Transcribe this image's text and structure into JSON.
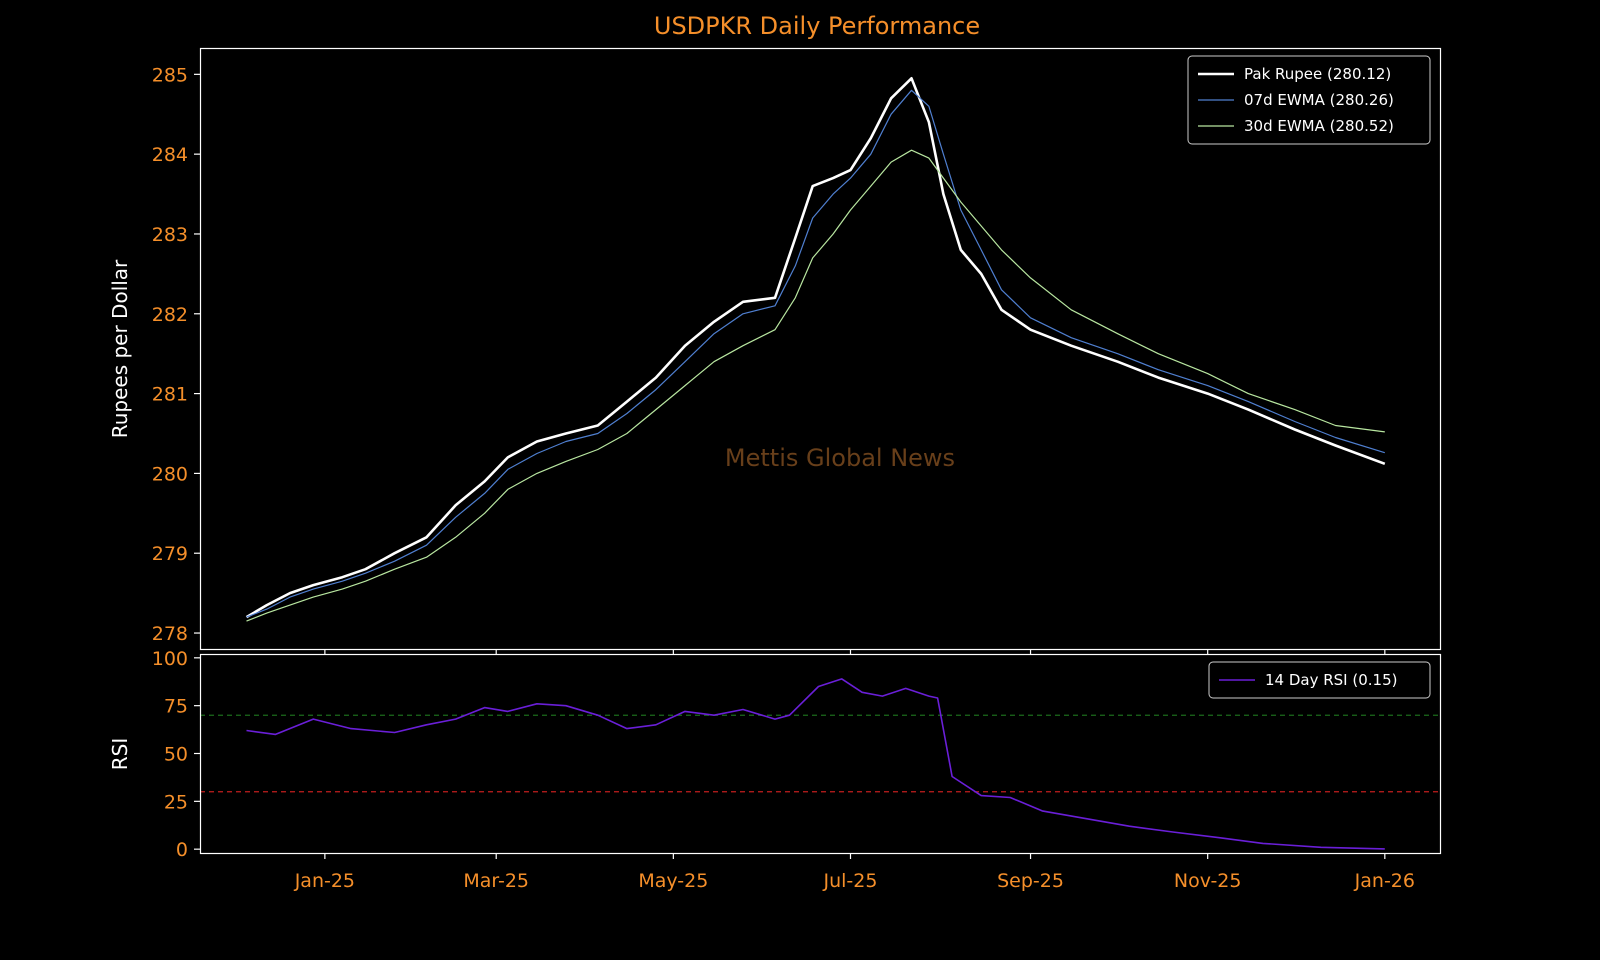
{
  "chart_data": [
    {
      "type": "line",
      "title": "USDPKR Daily Performance",
      "ylabel": "Rupees per Dollar",
      "ylim": [
        277.8,
        285.33
      ],
      "yticks": [
        "278",
        "279",
        "280",
        "281",
        "282",
        "283",
        "284",
        "285"
      ],
      "x_axis": "date",
      "xlim": [
        "2024-11-19",
        "2026-01-20"
      ],
      "x_tick_dates": [
        "2025-01-01",
        "2025-03-01",
        "2025-05-01",
        "2025-07-01",
        "2025-09-01",
        "2025-11-01",
        "2026-01-01"
      ],
      "xtick_labels": [
        "Jan-25",
        "Mar-25",
        "May-25",
        "Jul-25",
        "Sep-25",
        "Nov-25",
        "Jan-26"
      ],
      "watermark": "Mettis Global News",
      "legend_position": "top-right",
      "grid": false,
      "series": [
        {
          "name": "Pak Rupee (280.12)",
          "color": "#ffffff",
          "x": [
            "2024-12-05",
            "2024-12-12",
            "2024-12-20",
            "2024-12-28",
            "2025-01-07",
            "2025-01-15",
            "2025-01-25",
            "2025-02-05",
            "2025-02-15",
            "2025-02-25",
            "2025-03-05",
            "2025-03-15",
            "2025-03-25",
            "2025-04-05",
            "2025-04-15",
            "2025-04-25",
            "2025-05-05",
            "2025-05-15",
            "2025-05-25",
            "2025-06-05",
            "2025-06-12",
            "2025-06-18",
            "2025-06-25",
            "2025-07-01",
            "2025-07-08",
            "2025-07-15",
            "2025-07-22",
            "2025-07-28",
            "2025-08-02",
            "2025-08-08",
            "2025-08-15",
            "2025-08-22",
            "2025-09-01",
            "2025-09-15",
            "2025-10-01",
            "2025-10-15",
            "2025-11-01",
            "2025-11-15",
            "2025-12-01",
            "2025-12-15",
            "2026-01-01"
          ],
          "y": [
            278.2,
            278.35,
            278.5,
            278.6,
            278.7,
            278.8,
            279.0,
            279.2,
            279.6,
            279.9,
            280.2,
            280.4,
            280.5,
            280.6,
            280.9,
            281.2,
            281.6,
            281.9,
            282.15,
            282.2,
            282.95,
            283.6,
            283.7,
            283.8,
            284.2,
            284.7,
            284.95,
            284.4,
            283.5,
            282.8,
            282.5,
            282.05,
            281.8,
            281.6,
            281.4,
            281.2,
            281.0,
            280.8,
            280.55,
            280.35,
            280.12
          ]
        },
        {
          "name": "07d EWMA (280.26)",
          "color": "#4f7fd0",
          "x": [
            "2024-12-05",
            "2024-12-12",
            "2024-12-20",
            "2024-12-28",
            "2025-01-07",
            "2025-01-15",
            "2025-01-25",
            "2025-02-05",
            "2025-02-15",
            "2025-02-25",
            "2025-03-05",
            "2025-03-15",
            "2025-03-25",
            "2025-04-05",
            "2025-04-15",
            "2025-04-25",
            "2025-05-05",
            "2025-05-15",
            "2025-05-25",
            "2025-06-05",
            "2025-06-12",
            "2025-06-18",
            "2025-06-25",
            "2025-07-01",
            "2025-07-08",
            "2025-07-15",
            "2025-07-22",
            "2025-07-28",
            "2025-08-02",
            "2025-08-08",
            "2025-08-15",
            "2025-08-22",
            "2025-09-01",
            "2025-09-15",
            "2025-10-01",
            "2025-10-15",
            "2025-11-01",
            "2025-11-15",
            "2025-12-01",
            "2025-12-15",
            "2026-01-01"
          ],
          "y": [
            278.2,
            278.3,
            278.45,
            278.55,
            278.65,
            278.75,
            278.9,
            279.1,
            279.45,
            279.75,
            280.05,
            280.25,
            280.4,
            280.5,
            280.75,
            281.05,
            281.4,
            281.75,
            282.0,
            282.1,
            282.6,
            283.2,
            283.5,
            283.7,
            284.0,
            284.5,
            284.8,
            284.6,
            284.0,
            283.3,
            282.8,
            282.3,
            281.95,
            281.7,
            281.5,
            281.3,
            281.1,
            280.9,
            280.65,
            280.45,
            280.26
          ]
        },
        {
          "name": "30d EWMA (280.52)",
          "color": "#b8e6a0",
          "x": [
            "2024-12-05",
            "2024-12-12",
            "2024-12-20",
            "2024-12-28",
            "2025-01-07",
            "2025-01-15",
            "2025-01-25",
            "2025-02-05",
            "2025-02-15",
            "2025-02-25",
            "2025-03-05",
            "2025-03-15",
            "2025-03-25",
            "2025-04-05",
            "2025-04-15",
            "2025-04-25",
            "2025-05-05",
            "2025-05-15",
            "2025-05-25",
            "2025-06-05",
            "2025-06-12",
            "2025-06-18",
            "2025-06-25",
            "2025-07-01",
            "2025-07-08",
            "2025-07-15",
            "2025-07-22",
            "2025-07-28",
            "2025-08-02",
            "2025-08-08",
            "2025-08-15",
            "2025-08-22",
            "2025-09-01",
            "2025-09-15",
            "2025-10-01",
            "2025-10-15",
            "2025-11-01",
            "2025-11-15",
            "2025-12-01",
            "2025-12-15",
            "2026-01-01"
          ],
          "y": [
            278.15,
            278.25,
            278.35,
            278.45,
            278.55,
            278.65,
            278.8,
            278.95,
            279.2,
            279.5,
            279.8,
            280.0,
            280.15,
            280.3,
            280.5,
            280.8,
            281.1,
            281.4,
            281.6,
            281.8,
            282.2,
            282.7,
            283.0,
            283.3,
            283.6,
            283.9,
            284.05,
            283.95,
            283.7,
            283.4,
            283.1,
            282.8,
            282.45,
            282.05,
            281.75,
            281.5,
            281.25,
            281.0,
            280.8,
            280.6,
            280.52
          ]
        }
      ]
    },
    {
      "type": "line",
      "ylabel": "RSI",
      "ylim": [
        -2,
        102
      ],
      "yticks": [
        "0",
        "25",
        "50",
        "75",
        "100"
      ],
      "x_axis": "date",
      "xlim": [
        "2024-11-19",
        "2026-01-20"
      ],
      "legend_position": "top-right",
      "grid": false,
      "reference_lines": [
        {
          "y": 70,
          "color": "#1c6b1c",
          "style": "dashed"
        },
        {
          "y": 30,
          "color": "#c21e1e",
          "style": "dashed"
        }
      ],
      "series": [
        {
          "name": "14 Day RSI (0.15)",
          "color": "#6a1fd8",
          "x": [
            "2024-12-05",
            "2024-12-15",
            "2024-12-28",
            "2025-01-10",
            "2025-01-25",
            "2025-02-05",
            "2025-02-15",
            "2025-02-25",
            "2025-03-05",
            "2025-03-15",
            "2025-03-25",
            "2025-04-05",
            "2025-04-15",
            "2025-04-25",
            "2025-05-05",
            "2025-05-15",
            "2025-05-25",
            "2025-06-05",
            "2025-06-10",
            "2025-06-20",
            "2025-06-28",
            "2025-07-05",
            "2025-07-12",
            "2025-07-20",
            "2025-07-28",
            "2025-07-31",
            "2025-08-05",
            "2025-08-15",
            "2025-08-25",
            "2025-09-05",
            "2025-09-20",
            "2025-10-05",
            "2025-10-20",
            "2025-11-05",
            "2025-11-20",
            "2025-12-10",
            "2026-01-01"
          ],
          "y": [
            62,
            60,
            68,
            63,
            61,
            65,
            68,
            74,
            72,
            76,
            75,
            70,
            63,
            65,
            72,
            70,
            73,
            68,
            70,
            85,
            89,
            82,
            80,
            84,
            80,
            79,
            38,
            28,
            27,
            20,
            16,
            12,
            9,
            6,
            3,
            1,
            0.15
          ]
        }
      ]
    }
  ]
}
